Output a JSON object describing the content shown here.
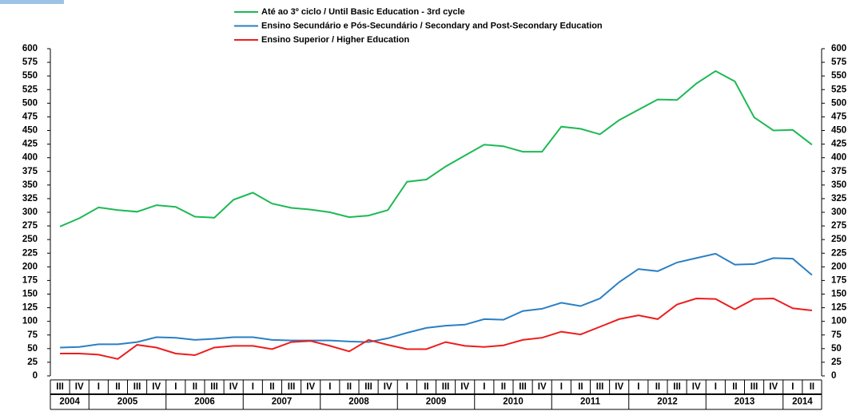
{
  "chart_data": {
    "type": "line",
    "categories": [
      "III",
      "IV",
      "I",
      "II",
      "III",
      "IV",
      "I",
      "II",
      "III",
      "IV",
      "I",
      "II",
      "III",
      "IV",
      "I",
      "II",
      "III",
      "IV",
      "I",
      "II",
      "III",
      "IV",
      "I",
      "II",
      "III",
      "IV",
      "I",
      "II",
      "III",
      "IV",
      "I",
      "II",
      "III",
      "IV",
      "I",
      "II",
      "III",
      "IV",
      "I",
      "II"
    ],
    "years": [
      "2004",
      "2005",
      "2006",
      "2007",
      "2008",
      "2009",
      "2010",
      "2011",
      "2012",
      "2013",
      "2014"
    ],
    "series": [
      {
        "name": "Até ao 3º ciclo / Until Basic Education - 3rd cycle",
        "color": "#1db954",
        "values": [
          274,
          289,
          309,
          304,
          301,
          313,
          310,
          292,
          290,
          323,
          336,
          316,
          308,
          305,
          300,
          291,
          294,
          304,
          356,
          360,
          384,
          404,
          424,
          421,
          411,
          411,
          457,
          453,
          443,
          469,
          488,
          507,
          506,
          536,
          559,
          540,
          474,
          450,
          451,
          424
        ]
      },
      {
        "name": "Ensino Secundário e Pós-Secundário / Secondary and Post-Secondary Education",
        "color": "#2a7fc4",
        "values": [
          52,
          53,
          58,
          58,
          62,
          71,
          70,
          66,
          68,
          71,
          71,
          66,
          65,
          65,
          65,
          63,
          62,
          69,
          79,
          88,
          92,
          94,
          104,
          103,
          119,
          123,
          134,
          128,
          142,
          172,
          196,
          192,
          208,
          216,
          224,
          204,
          205,
          216,
          215,
          185
        ]
      },
      {
        "name": "Ensino Superior / Higher Education",
        "color": "#ee1c1c",
        "values": [
          41,
          41,
          39,
          31,
          57,
          52,
          41,
          38,
          52,
          55,
          55,
          49,
          62,
          64,
          55,
          45,
          66,
          57,
          49,
          49,
          62,
          55,
          53,
          56,
          66,
          70,
          81,
          76,
          90,
          104,
          111,
          104,
          131,
          142,
          141,
          122,
          141,
          142,
          124,
          120
        ]
      }
    ],
    "ylim": [
      0,
      600
    ],
    "yticks": [
      0,
      25,
      50,
      75,
      100,
      125,
      150,
      175,
      200,
      225,
      250,
      275,
      300,
      325,
      350,
      375,
      400,
      425,
      450,
      475,
      500,
      525,
      550,
      575,
      600
    ]
  }
}
